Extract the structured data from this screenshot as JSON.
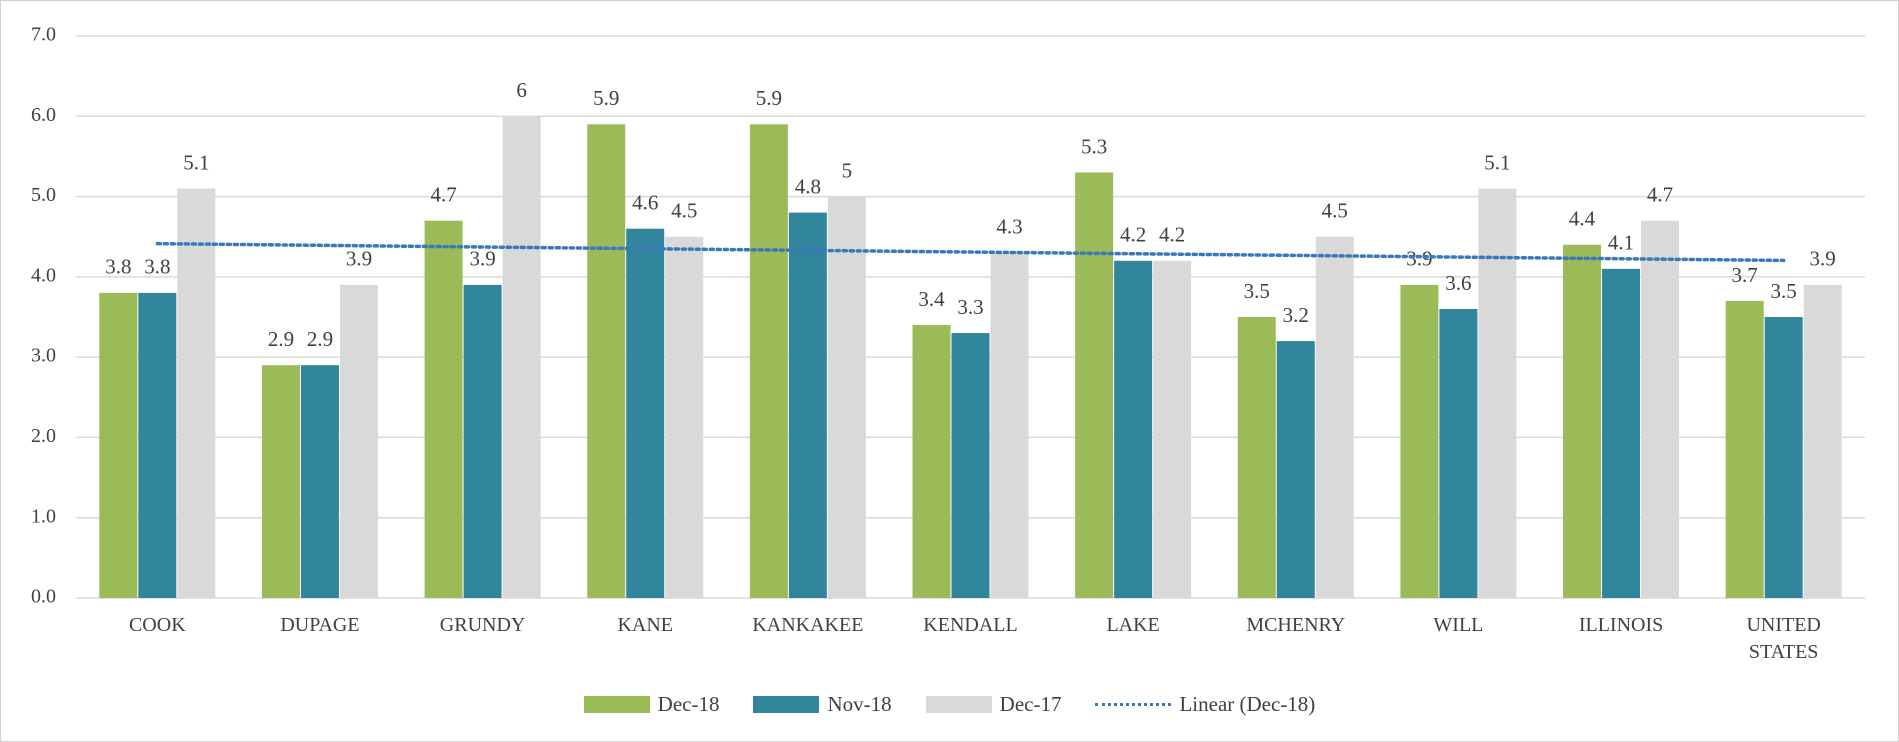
{
  "chart_data": {
    "type": "bar",
    "categories": [
      "COOK",
      "DUPAGE",
      "GRUNDY",
      "KANE",
      "KANKAKEE",
      "KENDALL",
      "LAKE",
      "MCHENRY",
      "WILL",
      "ILLINOIS",
      "UNITED STATES"
    ],
    "series": [
      {
        "name": "Dec-18",
        "color": "#9bbb59",
        "values": [
          3.8,
          2.9,
          4.7,
          5.9,
          5.9,
          3.4,
          5.3,
          3.5,
          3.9,
          4.4,
          3.7
        ]
      },
      {
        "name": "Nov-18",
        "color": "#31859c",
        "values": [
          3.8,
          2.9,
          3.9,
          4.6,
          4.8,
          3.3,
          4.2,
          3.2,
          3.6,
          4.1,
          3.5
        ]
      },
      {
        "name": "Dec-17",
        "color": "#d9d9d9",
        "values": [
          5.1,
          3.9,
          6,
          4.5,
          5,
          4.3,
          4.2,
          4.5,
          5.1,
          4.7,
          3.9
        ]
      }
    ],
    "trendline": {
      "name": "Linear (Dec-18)",
      "series": 0,
      "color": "#3a78b8"
    },
    "ylim": [
      0,
      7
    ],
    "yticks": [
      {
        "value": 0,
        "label": "0.0"
      },
      {
        "value": 1,
        "label": "1.0"
      },
      {
        "value": 2,
        "label": "2.0"
      },
      {
        "value": 3,
        "label": "3.0"
      },
      {
        "value": 4,
        "label": "4.0"
      },
      {
        "value": 5,
        "label": "5.0"
      },
      {
        "value": 6,
        "label": "6.0"
      },
      {
        "value": 7,
        "label": "7.0"
      }
    ],
    "grid": true,
    "legend": "bottom"
  }
}
